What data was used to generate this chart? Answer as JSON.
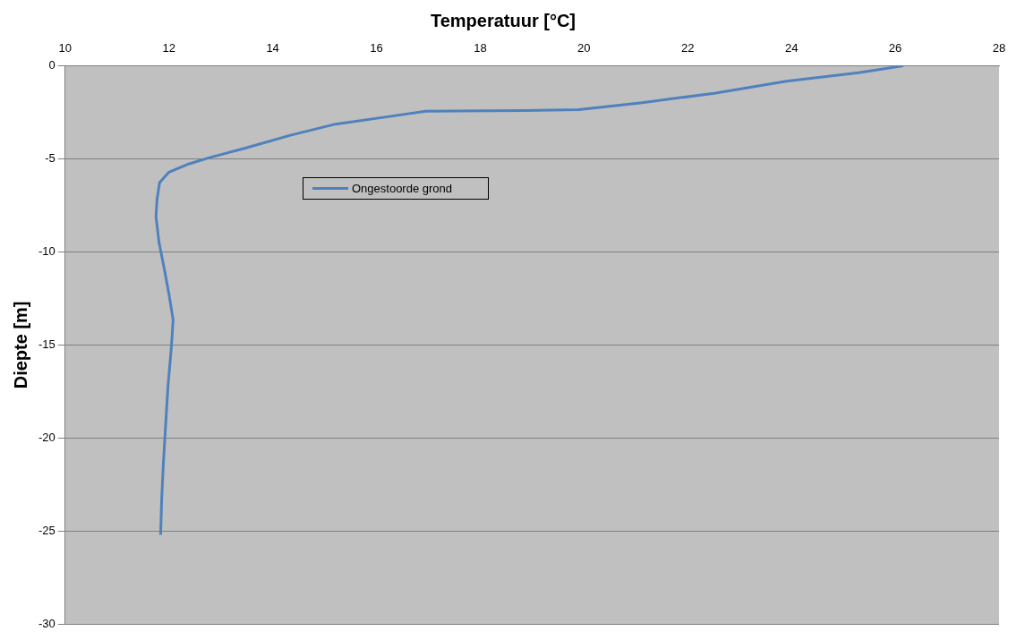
{
  "chart_data": {
    "type": "line",
    "title": "Temperatuur [°C]",
    "ylabel": "Diepte [m]",
    "xlim": [
      10,
      28
    ],
    "xticks": [
      10,
      12,
      14,
      16,
      18,
      20,
      22,
      24,
      26,
      28
    ],
    "ylim": [
      -30,
      0
    ],
    "yticks": [
      -30,
      -25,
      -20,
      -15,
      -10,
      -5,
      0
    ],
    "grid": "y",
    "legend": "top left",
    "marker": "none",
    "line_style": "solid",
    "series": [
      {
        "name": "Ongestoorde grond",
        "color": "#4f81bd",
        "x": [
          26.15,
          25.29,
          23.9,
          22.51,
          21.12,
          19.9,
          18.86,
          16.95,
          16.25,
          15.21,
          14.34,
          13.47,
          12.78,
          12.35,
          12.0,
          11.82,
          11.77,
          11.75,
          11.81,
          11.91,
          12.0,
          12.08,
          12.05,
          11.98,
          11.93,
          11.89,
          11.86,
          11.84
        ],
        "values": [
          0,
          -0.37,
          -0.83,
          -1.47,
          -1.98,
          -2.35,
          -2.4,
          -2.44,
          -2.72,
          -3.13,
          -3.73,
          -4.42,
          -4.93,
          -5.3,
          -5.71,
          -6.27,
          -7.19,
          -8.1,
          -9.5,
          -10.9,
          -12.26,
          -13.64,
          -15.0,
          -17.3,
          -19.6,
          -21.5,
          -23.3,
          -25.2
        ]
      }
    ]
  }
}
